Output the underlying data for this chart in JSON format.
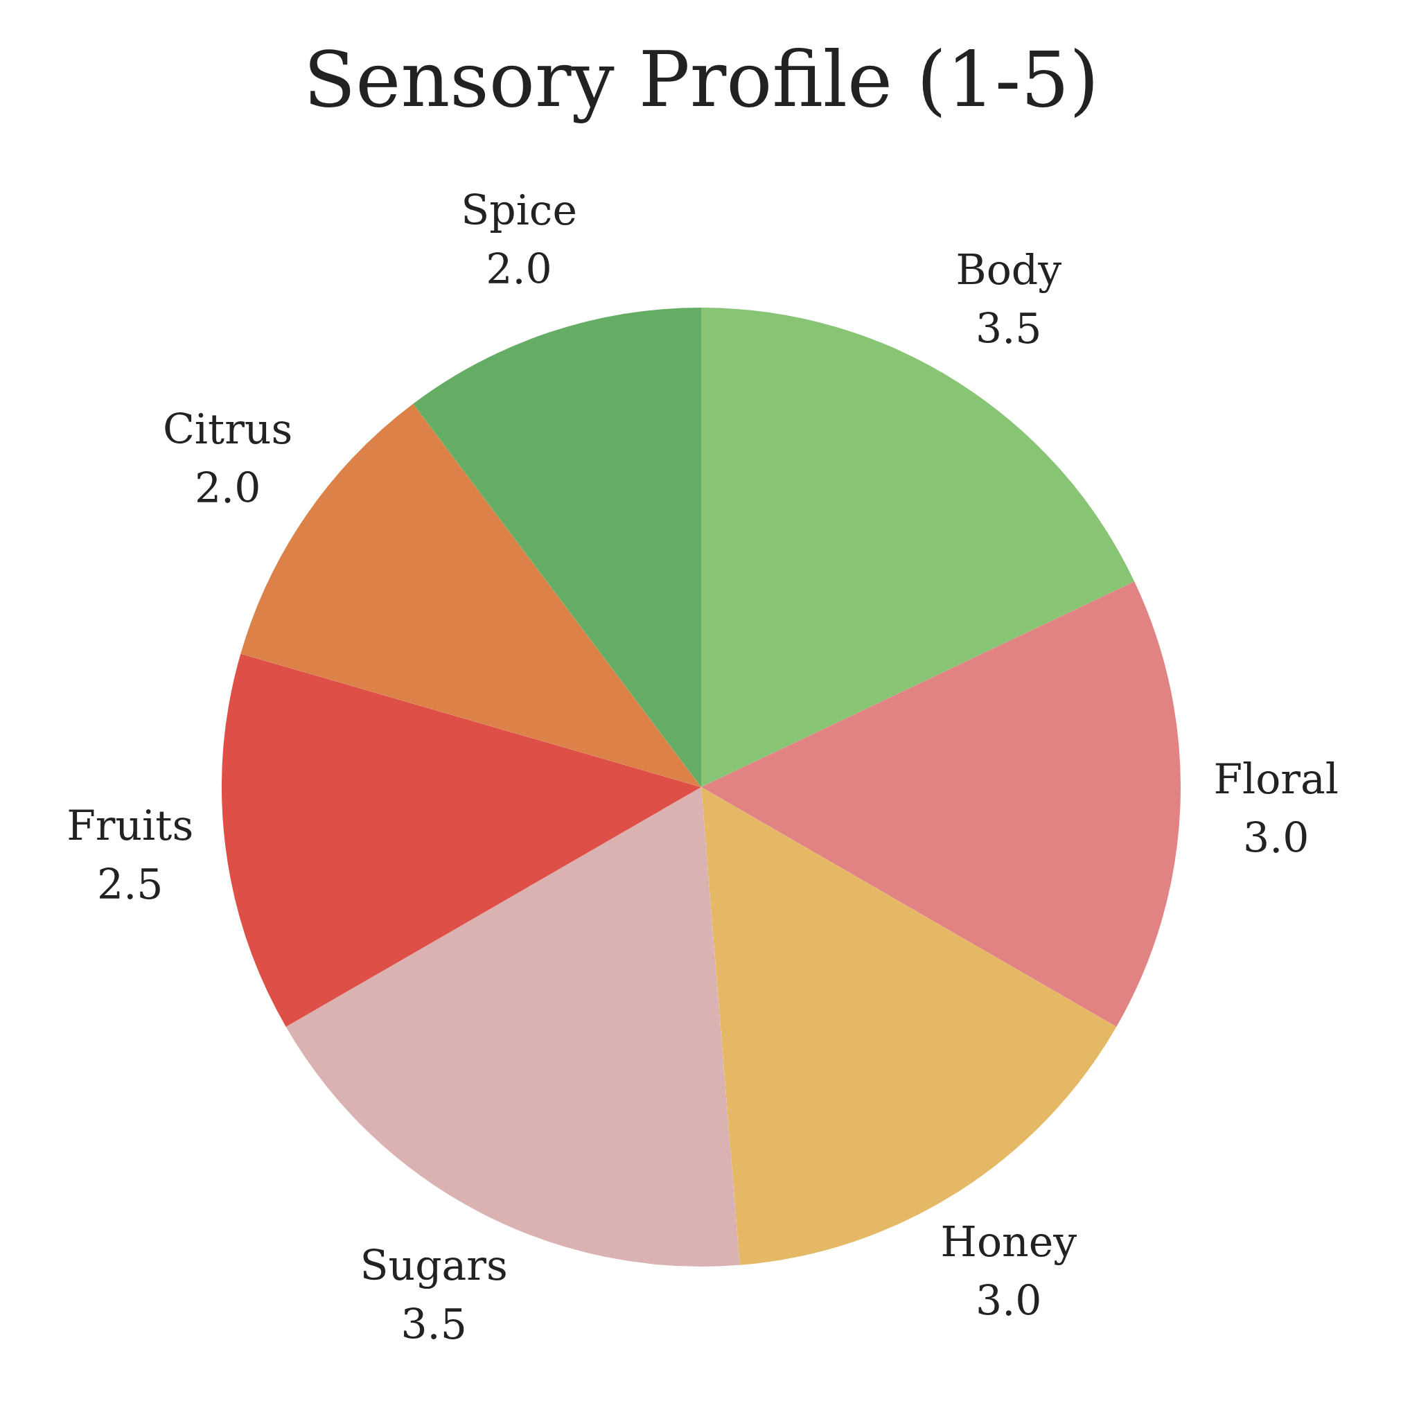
{
  "chart_data": {
    "type": "pie",
    "title": "Sensory Profile (1-5)",
    "categories": [
      "Body",
      "Floral",
      "Honey",
      "Sugars",
      "Fruits",
      "Citrus",
      "Spice"
    ],
    "values": [
      3.5,
      3.0,
      3.0,
      3.5,
      2.5,
      2.0,
      2.0
    ],
    "value_labels": [
      "3.5",
      "3.0",
      "3.0",
      "3.5",
      "2.5",
      "2.0",
      "2.0"
    ],
    "colors": [
      "#87c473",
      "#e28383",
      "#e4b865",
      "#dbb2b2",
      "#de5047",
      "#dc8249",
      "#65ad64"
    ]
  }
}
